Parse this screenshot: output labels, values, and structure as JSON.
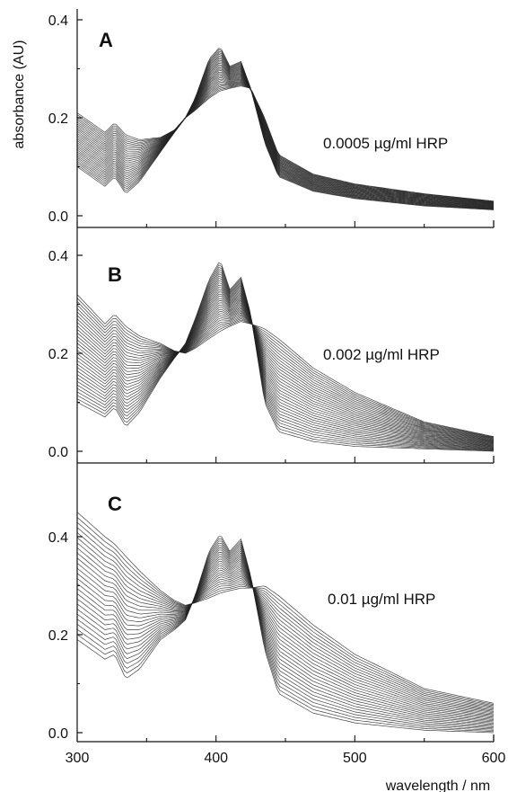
{
  "chart_data": [
    {
      "type": "line",
      "panel": "A",
      "annotation": "0.0005 µg/ml HRP",
      "xlim": [
        300,
        600
      ],
      "ylim": [
        -0.02,
        0.4
      ],
      "yticks": [
        "0.0",
        "0.2",
        "0.4"
      ],
      "series_count": 30,
      "spectrum_first": {
        "x": [
          300,
          320,
          327,
          335,
          345,
          360,
          370,
          378,
          385,
          395,
          403,
          410,
          418,
          425,
          435,
          445,
          470,
          500,
          550,
          600
        ],
        "y": [
          0.1,
          0.06,
          0.08,
          0.045,
          0.07,
          0.13,
          0.17,
          0.2,
          0.24,
          0.32,
          0.345,
          0.305,
          0.315,
          0.26,
          0.15,
          0.08,
          0.05,
          0.035,
          0.02,
          0.012
        ]
      },
      "spectrum_last": {
        "x": [
          300,
          320,
          327,
          335,
          345,
          360,
          370,
          378,
          385,
          395,
          403,
          410,
          418,
          425,
          435,
          445,
          470,
          500,
          550,
          600
        ],
        "y": [
          0.21,
          0.17,
          0.19,
          0.165,
          0.155,
          0.16,
          0.175,
          0.2,
          0.215,
          0.24,
          0.255,
          0.26,
          0.265,
          0.26,
          0.2,
          0.125,
          0.085,
          0.065,
          0.045,
          0.03
        ]
      }
    },
    {
      "type": "line",
      "panel": "B",
      "annotation": "0.002 µg/ml HRP",
      "xlim": [
        300,
        600
      ],
      "ylim": [
        -0.02,
        0.4
      ],
      "yticks": [
        "0.0",
        "0.2",
        "0.4"
      ],
      "series_count": 32,
      "spectrum_first": {
        "x": [
          300,
          320,
          327,
          335,
          345,
          360,
          370,
          378,
          385,
          395,
          403,
          410,
          418,
          425,
          435,
          445,
          470,
          500,
          550,
          600
        ],
        "y": [
          0.1,
          0.07,
          0.09,
          0.05,
          0.08,
          0.15,
          0.19,
          0.22,
          0.27,
          0.35,
          0.39,
          0.33,
          0.355,
          0.28,
          0.1,
          0.04,
          0.02,
          0.01,
          0.005,
          0.0
        ]
      },
      "spectrum_last": {
        "x": [
          300,
          320,
          327,
          335,
          345,
          360,
          370,
          378,
          385,
          395,
          403,
          410,
          418,
          425,
          435,
          445,
          470,
          500,
          550,
          600
        ],
        "y": [
          0.32,
          0.26,
          0.28,
          0.255,
          0.235,
          0.22,
          0.205,
          0.2,
          0.21,
          0.23,
          0.245,
          0.255,
          0.265,
          0.26,
          0.25,
          0.23,
          0.17,
          0.12,
          0.06,
          0.03
        ]
      }
    },
    {
      "type": "line",
      "panel": "C",
      "annotation": "0.01 µg/ml HRP",
      "xlim": [
        300,
        600
      ],
      "ylim": [
        -0.02,
        0.5
      ],
      "yticks": [
        "0.0",
        "0.2",
        "0.4"
      ],
      "series_count": 26,
      "xticks": [
        "300",
        "400",
        "500",
        "600"
      ],
      "xlabel": "wavelength / nm",
      "spectrum_first": {
        "x": [
          300,
          320,
          327,
          335,
          345,
          360,
          370,
          378,
          385,
          395,
          403,
          410,
          418,
          425,
          435,
          445,
          470,
          500,
          550,
          600
        ],
        "y": [
          0.19,
          0.15,
          0.16,
          0.11,
          0.13,
          0.19,
          0.21,
          0.23,
          0.28,
          0.37,
          0.405,
          0.37,
          0.395,
          0.32,
          0.17,
          0.08,
          0.04,
          0.02,
          0.005,
          0.0
        ]
      },
      "spectrum_last": {
        "x": [
          300,
          320,
          327,
          335,
          345,
          360,
          370,
          378,
          385,
          395,
          403,
          410,
          418,
          425,
          435,
          445,
          470,
          500,
          550,
          600
        ],
        "y": [
          0.45,
          0.4,
          0.385,
          0.36,
          0.33,
          0.29,
          0.27,
          0.26,
          0.265,
          0.275,
          0.285,
          0.29,
          0.295,
          0.295,
          0.3,
          0.28,
          0.22,
          0.16,
          0.09,
          0.06
        ]
      }
    }
  ],
  "shared": {
    "ylabel": "absorbance (AU)",
    "line_color": "#222222"
  }
}
